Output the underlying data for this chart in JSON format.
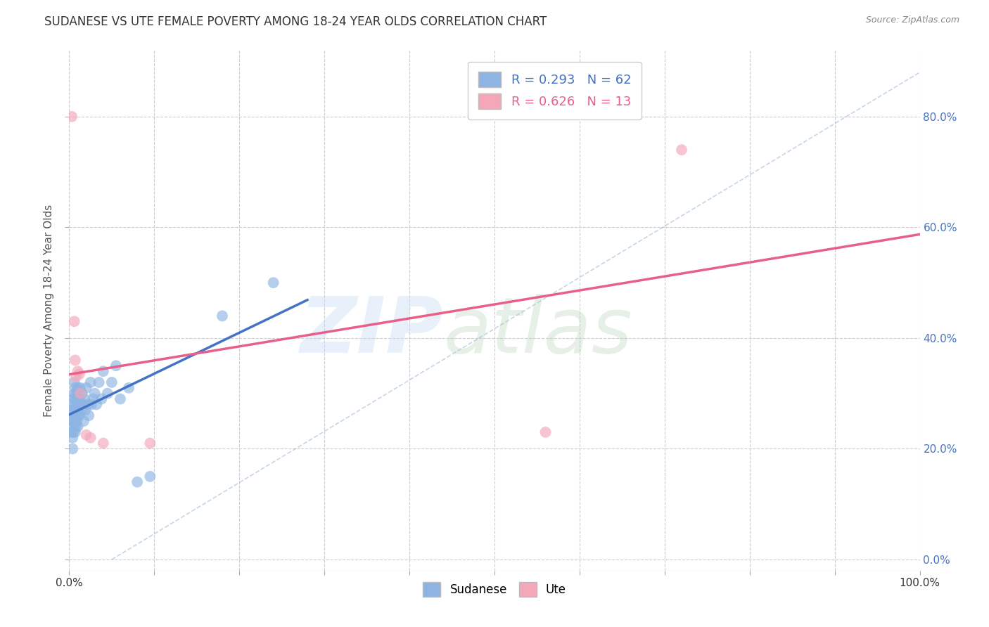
{
  "title": "SUDANESE VS UTE FEMALE POVERTY AMONG 18-24 YEAR OLDS CORRELATION CHART",
  "source": "Source: ZipAtlas.com",
  "ylabel": "Female Poverty Among 18-24 Year Olds",
  "xlim": [
    0,
    1.0
  ],
  "ylim": [
    -0.02,
    0.92
  ],
  "xticks": [
    0.0,
    0.1,
    0.2,
    0.3,
    0.4,
    0.5,
    0.6,
    0.7,
    0.8,
    0.9,
    1.0
  ],
  "xtick_labels_show": [
    "0.0%",
    "",
    "",
    "",
    "",
    "",
    "",
    "",
    "",
    "",
    "100.0%"
  ],
  "yticks": [
    0.0,
    0.2,
    0.4,
    0.6,
    0.8
  ],
  "ytick_labels_right": [
    "0.0%",
    "20.0%",
    "40.0%",
    "60.0%",
    "80.0%"
  ],
  "sudanese_color": "#8db4e2",
  "ute_color": "#f4a7b9",
  "sudanese_label": "Sudanese",
  "ute_label": "Ute",
  "sudanese_R": 0.293,
  "sudanese_N": 62,
  "ute_R": 0.626,
  "ute_N": 13,
  "background_color": "#ffffff",
  "grid_color": "#cccccc",
  "sudanese_line_color": "#4472c4",
  "ute_line_color": "#e8608a",
  "dashed_line_color": "#a0bcd8",
  "sudanese_scatter_x": [
    0.002,
    0.003,
    0.003,
    0.004,
    0.004,
    0.004,
    0.005,
    0.005,
    0.005,
    0.005,
    0.006,
    0.006,
    0.006,
    0.006,
    0.007,
    0.007,
    0.007,
    0.007,
    0.007,
    0.008,
    0.008,
    0.008,
    0.008,
    0.009,
    0.009,
    0.009,
    0.01,
    0.01,
    0.01,
    0.01,
    0.011,
    0.011,
    0.012,
    0.012,
    0.013,
    0.013,
    0.014,
    0.015,
    0.016,
    0.017,
    0.018,
    0.019,
    0.02,
    0.022,
    0.023,
    0.025,
    0.026,
    0.028,
    0.03,
    0.032,
    0.035,
    0.038,
    0.04,
    0.045,
    0.05,
    0.055,
    0.06,
    0.07,
    0.08,
    0.095,
    0.18,
    0.24
  ],
  "sudanese_scatter_y": [
    0.27,
    0.25,
    0.23,
    0.24,
    0.22,
    0.2,
    0.29,
    0.27,
    0.25,
    0.23,
    0.32,
    0.3,
    0.28,
    0.26,
    0.31,
    0.29,
    0.27,
    0.25,
    0.23,
    0.3,
    0.28,
    0.26,
    0.24,
    0.29,
    0.27,
    0.25,
    0.31,
    0.28,
    0.26,
    0.24,
    0.3,
    0.27,
    0.29,
    0.26,
    0.31,
    0.28,
    0.27,
    0.3,
    0.28,
    0.25,
    0.29,
    0.27,
    0.31,
    0.28,
    0.26,
    0.32,
    0.28,
    0.29,
    0.3,
    0.28,
    0.32,
    0.29,
    0.34,
    0.3,
    0.32,
    0.35,
    0.29,
    0.31,
    0.14,
    0.15,
    0.44,
    0.5
  ],
  "ute_scatter_x": [
    0.003,
    0.006,
    0.007,
    0.008,
    0.01,
    0.012,
    0.013,
    0.02,
    0.025,
    0.04,
    0.095,
    0.56,
    0.72
  ],
  "ute_scatter_y": [
    0.8,
    0.43,
    0.36,
    0.33,
    0.34,
    0.335,
    0.3,
    0.225,
    0.22,
    0.21,
    0.21,
    0.23,
    0.74
  ]
}
